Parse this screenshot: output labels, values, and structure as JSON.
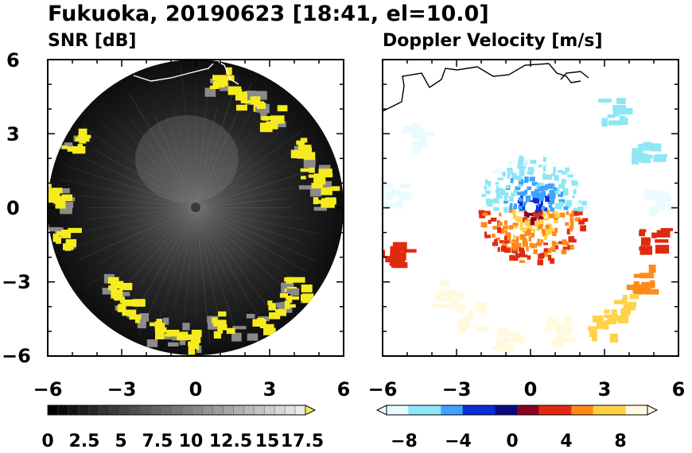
{
  "figure": {
    "title": "Fukuoka, 20190623 [18:41, el=10.0]"
  },
  "chart_data": [
    {
      "type": "heatmap",
      "subtitle": "SNR [dB]",
      "xlim": [
        -6,
        6
      ],
      "ylim": [
        -6,
        6
      ],
      "x_ticks": [
        "−6",
        "−3",
        "0",
        "3",
        "6"
      ],
      "y_ticks": [
        "6",
        "3",
        "0",
        "−3",
        "−6"
      ],
      "grid": false,
      "radar_range": 6,
      "background_color": "#0a0a0a",
      "echo_color": "#f5eb1e",
      "colorbar": {
        "min": 0,
        "max": 18.75,
        "step": 0.75,
        "tick_labels": [
          "0",
          "2.5",
          "5",
          "7.5",
          "10",
          "12.5",
          "15",
          "17.5"
        ],
        "tick_values": [
          0,
          2.5,
          5,
          7.5,
          10,
          12.5,
          15,
          17.5
        ],
        "extend": "max",
        "colors": [
          "#000000",
          "#ffffff",
          "#f0f04a"
        ]
      },
      "echo_clusters": [
        {
          "x": 0.9,
          "y": 5.3
        },
        {
          "x": 2.0,
          "y": 4.4
        },
        {
          "x": 2.9,
          "y": 3.8
        },
        {
          "x": 4.0,
          "y": 2.5
        },
        {
          "x": 5.0,
          "y": 0.5
        },
        {
          "x": 4.6,
          "y": 1.4
        },
        {
          "x": -5.0,
          "y": 2.8
        },
        {
          "x": -5.8,
          "y": 0.6
        },
        {
          "x": -5.6,
          "y": -1.2
        },
        {
          "x": -3.5,
          "y": -3.2
        },
        {
          "x": -2.8,
          "y": -4.1
        },
        {
          "x": -1.6,
          "y": -4.9
        },
        {
          "x": -0.5,
          "y": -5.2
        },
        {
          "x": 1.0,
          "y": -4.6
        },
        {
          "x": 2.6,
          "y": -4.6
        },
        {
          "x": 4.0,
          "y": -3.2
        },
        {
          "x": 3.3,
          "y": -3.8
        }
      ]
    },
    {
      "type": "heatmap",
      "subtitle": "Doppler Velocity [m/s]",
      "xlim": [
        -6,
        6
      ],
      "ylim": [
        -6,
        6
      ],
      "x_ticks": [
        "−6",
        "−3",
        "0",
        "3",
        "6"
      ],
      "y_ticks": [],
      "grid": false,
      "colorbar": {
        "min": -10,
        "max": 10,
        "tick_labels": [
          "−8",
          "−4",
          "0",
          "4",
          "8"
        ],
        "tick_values": [
          -8,
          -4,
          0,
          4,
          8
        ],
        "extend": "both",
        "colors": [
          "#e9fbff",
          "#8fe6f5",
          "#3fa3ff",
          "#0a2dd4",
          "#0a0a80",
          "#8a0020",
          "#e02a10",
          "#ff8a1a",
          "#ffd24a",
          "#fffadf"
        ]
      },
      "echo_clusters": [
        {
          "x": 3.2,
          "y": 4.0,
          "v": -6.5
        },
        {
          "x": 4.6,
          "y": 2.2,
          "v": -7.5
        },
        {
          "x": 5.1,
          "y": 0.4,
          "v": -9.5
        },
        {
          "x": 4.8,
          "y": -1.3,
          "v": 2.0
        },
        {
          "x": 4.4,
          "y": -2.8,
          "v": 4.5
        },
        {
          "x": -4.9,
          "y": 2.9,
          "v": -9.0
        },
        {
          "x": -5.8,
          "y": 0.6,
          "v": -9.5
        },
        {
          "x": -5.6,
          "y": -1.8,
          "v": 3.0
        },
        {
          "x": -3.5,
          "y": -3.4,
          "v": 8.5
        },
        {
          "x": -2.6,
          "y": -4.3,
          "v": 8.0
        },
        {
          "x": -1.2,
          "y": -5.2,
          "v": 8.5
        },
        {
          "x": 1.0,
          "y": -4.8,
          "v": 8.0
        },
        {
          "x": 2.8,
          "y": -4.6,
          "v": 7.5
        },
        {
          "x": 3.6,
          "y": -3.9,
          "v": 7.0
        }
      ]
    }
  ]
}
